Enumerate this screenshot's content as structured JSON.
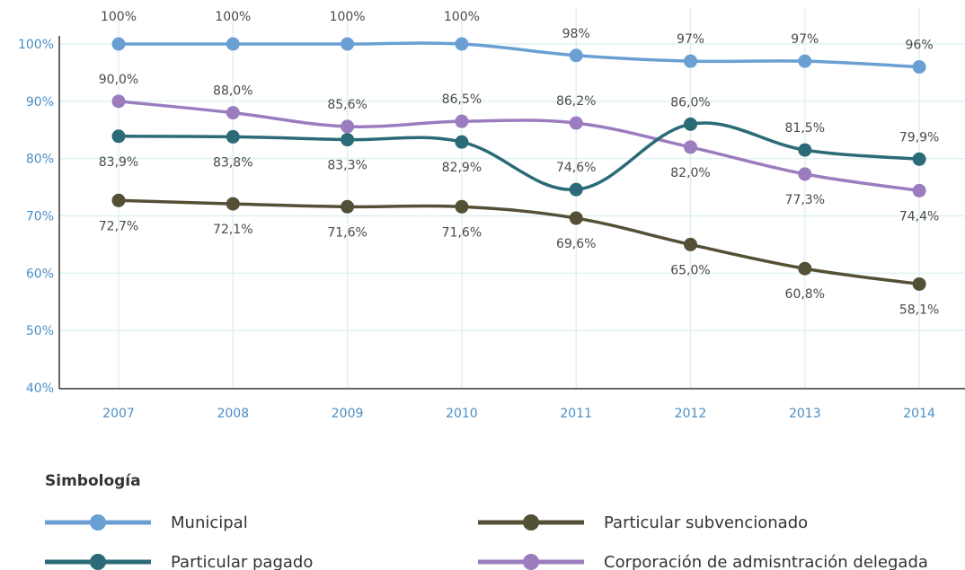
{
  "colors": {
    "municipal": "#6a9fd4",
    "particular_pagado": "#2b6a77",
    "particular_subvencionado": "#545036",
    "corporacion": "#9b7cbf",
    "grid": "#d9eef0",
    "axis": "#333333",
    "tick_text": "#4a8ec4"
  },
  "legend": {
    "title": "Simbología"
  },
  "chart_data": {
    "type": "line",
    "categories": [
      "2007",
      "2008",
      "2009",
      "2010",
      "2011",
      "2012",
      "2013",
      "2014"
    ],
    "y_ticks": [
      "40%",
      "50%",
      "60%",
      "70%",
      "80%",
      "90%",
      "100%"
    ],
    "ylim": [
      40,
      100
    ],
    "grid": true,
    "legend_position": "bottom",
    "series": [
      {
        "key": "municipal",
        "name": "Municipal",
        "values": [
          100,
          100,
          100,
          100,
          98,
          97,
          97,
          96
        ],
        "labels": [
          "100%",
          "100%",
          "100%",
          "100%",
          "98%",
          "97%",
          "97%",
          "96%"
        ]
      },
      {
        "key": "corporacion",
        "name": "Corporación de admisntración delegada",
        "values": [
          90.0,
          88.0,
          85.6,
          86.5,
          86.2,
          82.0,
          77.3,
          74.4
        ],
        "labels": [
          "90,0%",
          "88,0%",
          "85,6%",
          "86,5%",
          "86,2%",
          "82,0%",
          "77,3%",
          "74,4%"
        ]
      },
      {
        "key": "particular_pagado",
        "name": "Particular pagado",
        "values": [
          83.9,
          83.8,
          83.3,
          82.9,
          74.6,
          86.0,
          81.5,
          79.9
        ],
        "labels": [
          "83,9%",
          "83,8%",
          "83,3%",
          "82,9%",
          "74,6%",
          "86,0%",
          "81,5%",
          "79,9%"
        ]
      },
      {
        "key": "particular_subvencionado",
        "name": "Particular subvencionado",
        "values": [
          72.7,
          72.1,
          71.6,
          71.6,
          69.6,
          65.0,
          60.8,
          58.1
        ],
        "labels": [
          "72,7%",
          "72,1%",
          "71,6%",
          "71,6%",
          "69,6%",
          "65,0%",
          "60,8%",
          "58,1%"
        ]
      }
    ]
  }
}
